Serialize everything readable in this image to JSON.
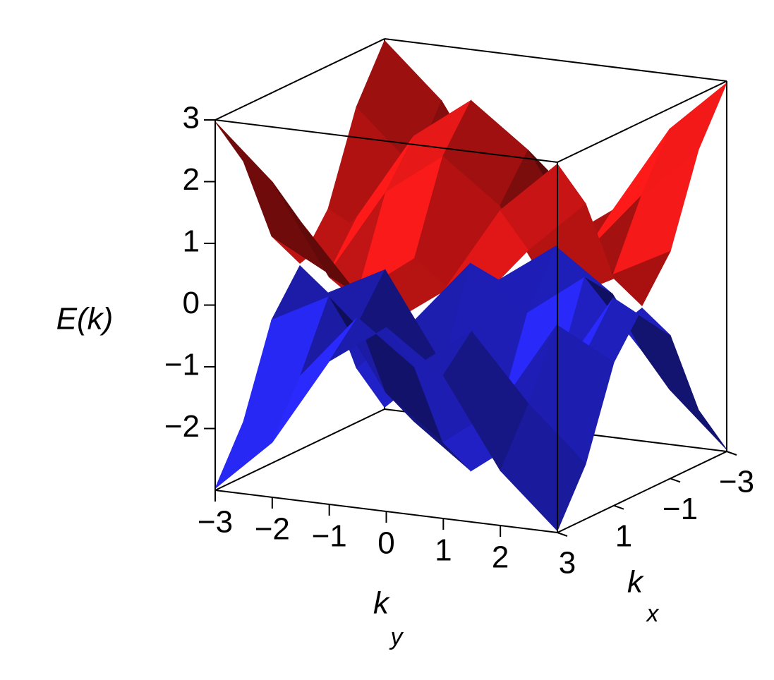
{
  "chart_data": {
    "type": "surface3d",
    "zlabel": "E(k)",
    "xlabel": "k",
    "xlabel_sub": "x",
    "ylabel": "k",
    "ylabel_sub": "y",
    "x": [
      -3,
      -2,
      -1,
      0,
      1,
      2,
      3
    ],
    "y": [
      -3,
      -2,
      -1,
      0,
      1,
      2,
      3
    ],
    "xlim": [
      -3,
      3
    ],
    "ylim": [
      -3,
      3
    ],
    "zlim": [
      -3,
      3
    ],
    "xticks": [
      {
        "value": -3,
        "label": "−3"
      },
      {
        "value": -1,
        "label": "−1"
      },
      1,
      3
    ],
    "yticks": [
      {
        "value": -3,
        "label": "−3"
      },
      {
        "value": -2,
        "label": "−2"
      },
      {
        "value": -1,
        "label": "−1"
      },
      0,
      1,
      2
    ],
    "zticks": [
      {
        "value": -2,
        "label": "−2"
      },
      {
        "value": -1,
        "label": "−1"
      },
      0,
      1,
      2,
      3
    ],
    "series": [
      {
        "color": "#ff1a1a",
        "values": [
          [
            2.97,
            2.11,
            0.68,
            0.02,
            0.68,
            2.11,
            2.97
          ],
          [
            2.11,
            1.25,
            0.19,
            0.88,
            0.19,
            1.25,
            2.11
          ],
          [
            0.68,
            0.19,
            1.62,
            2.31,
            1.62,
            0.19,
            0.68
          ],
          [
            0.02,
            0.88,
            2.31,
            3,
            2.31,
            0.88,
            0.02
          ],
          [
            0.68,
            0.19,
            1.62,
            2.31,
            1.62,
            0.19,
            0.68
          ],
          [
            2.11,
            1.25,
            0.19,
            0.88,
            0.19,
            1.25,
            2.11
          ],
          [
            2.97,
            2.11,
            0.68,
            0.02,
            0.68,
            2.11,
            2.97
          ]
        ]
      },
      {
        "color": "#2a2aff",
        "values": [
          [
            -2.97,
            -2.11,
            -0.68,
            -0.02,
            -0.68,
            -2.11,
            -2.97
          ],
          [
            -2.11,
            -1.25,
            -0.19,
            -0.88,
            -0.19,
            -1.25,
            -2.11
          ],
          [
            -0.68,
            -0.19,
            -1.62,
            -2.31,
            -1.62,
            -0.19,
            -0.68
          ],
          [
            -0.02,
            -0.88,
            -2.31,
            -3,
            -2.31,
            -0.88,
            -0.02
          ],
          [
            -0.68,
            -0.19,
            -1.62,
            -2.31,
            -1.62,
            -0.19,
            -0.68
          ],
          [
            -2.11,
            -1.25,
            -0.19,
            -0.88,
            -0.19,
            -1.25,
            -2.11
          ],
          [
            -2.97,
            -2.11,
            -0.68,
            -0.02,
            -0.68,
            -2.11,
            -2.97
          ]
        ]
      }
    ]
  }
}
